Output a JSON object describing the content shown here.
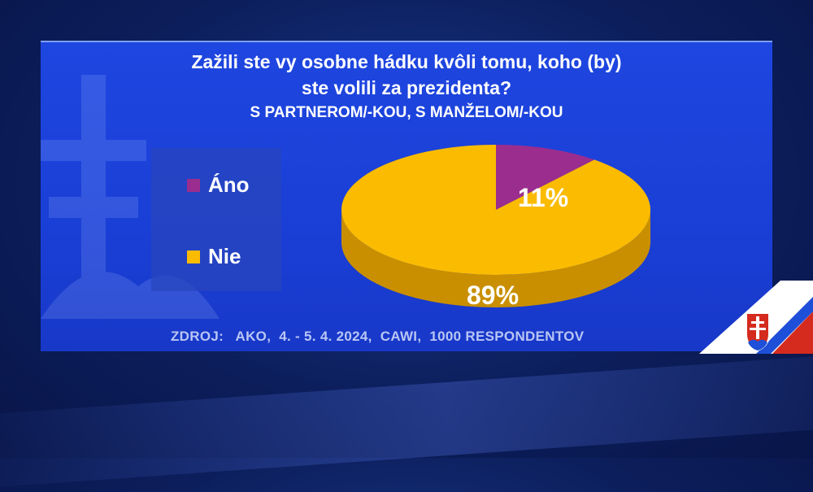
{
  "header": {
    "title_line1": "Zažili ste vy osobne hádku kvôli tomu, koho (by)",
    "title_line2": "ste volili za prezidenta?",
    "subtitle": "S PARTNEROM/-KOU, S MANŽELOM/-KOU"
  },
  "footer": {
    "source": "ZDROJ:   AKO,  4. - 5. 4. 2024,  CAWI,  1000 RESPONDENTOV"
  },
  "colors": {
    "ano": "#9b2d8e",
    "nie": "#fbbb00",
    "nie_side": "#c98f00",
    "ano_side": "#6f1f66"
  },
  "chart_data": {
    "type": "pie",
    "title": "Zažili ste vy osobne hádku kvôli tomu, koho (by) ste volili za prezidenta?",
    "subtitle": "S PARTNEROM/-KOU, S MANŽELOM/-KOU",
    "legend_position": "left",
    "slices": [
      {
        "label": "Áno",
        "value": 11,
        "display": "11%"
      },
      {
        "label": "Nie",
        "value": 89,
        "display": "89%"
      }
    ]
  }
}
